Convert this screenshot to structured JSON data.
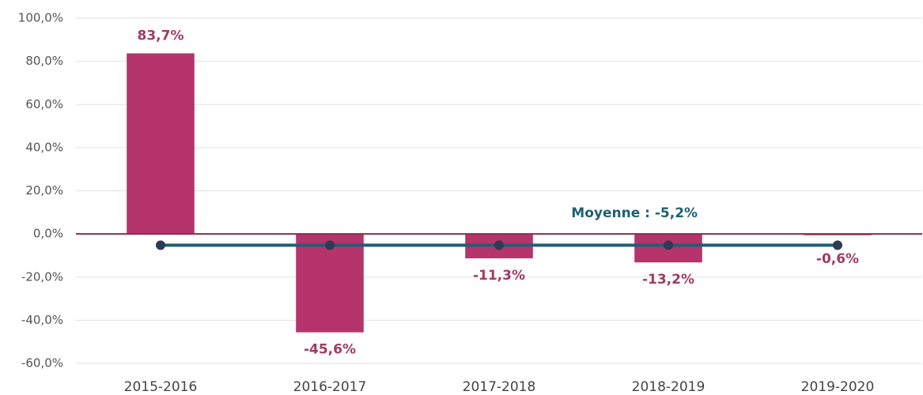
{
  "chart_data": {
    "type": "bar",
    "categories": [
      "2015-2016",
      "2016-2017",
      "2017-2018",
      "2018-2019",
      "2019-2020"
    ],
    "values": [
      83.7,
      -45.6,
      -11.3,
      -13.2,
      -0.6
    ],
    "value_labels": [
      "83,7%",
      "-45,6%",
      "-11,3%",
      "-13,2%",
      "-0,6%"
    ],
    "color": "#b5346c",
    "label_color": "#a23a66",
    "average": -5.2,
    "average_label": "Moyenne : -5,2%",
    "average_color": "#1f5f73",
    "ylim": [
      -60,
      100
    ],
    "yticks": [
      {
        "value": -60,
        "label": "-60,0%"
      },
      {
        "value": -40,
        "label": "-40,0%"
      },
      {
        "value": -20,
        "label": "-20,0%"
      },
      {
        "value": 0,
        "label": "0,0%"
      },
      {
        "value": 20,
        "label": "20,0%"
      },
      {
        "value": 40,
        "label": "40,0%"
      },
      {
        "value": 60,
        "label": "60,0%"
      },
      {
        "value": 80,
        "label": "80,0%"
      },
      {
        "value": 100,
        "label": "100,0%"
      }
    ],
    "grid": true
  }
}
